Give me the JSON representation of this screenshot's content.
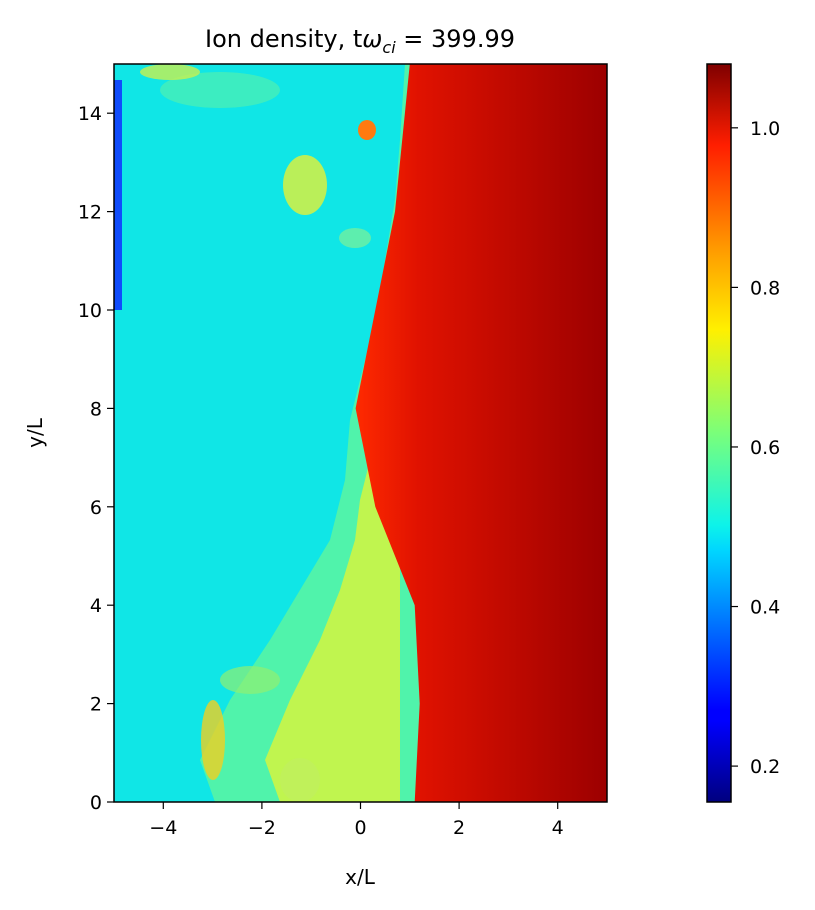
{
  "chart_data": {
    "type": "heatmap",
    "title_prefix": "Ion density, t",
    "title_symbol": "ω",
    "title_subscript": "ci",
    "title_suffix": " = 399.99",
    "xlabel": "x/L",
    "ylabel": "y/L",
    "xlim": [
      -5,
      5
    ],
    "ylim": [
      0,
      15
    ],
    "xticks": [
      -4,
      -2,
      0,
      2,
      4
    ],
    "xtick_labels": [
      "−4",
      "−2",
      "0",
      "2",
      "4"
    ],
    "yticks": [
      0,
      2,
      4,
      6,
      8,
      10,
      12,
      14
    ],
    "ytick_labels": [
      "0",
      "2",
      "4",
      "6",
      "8",
      "10",
      "12",
      "14"
    ],
    "colormap": "jet",
    "colorbar": {
      "min": 0.155,
      "max": 1.08,
      "ticks": [
        0.2,
        0.4,
        0.6,
        0.8,
        1.0
      ],
      "tick_labels": [
        "0.2",
        "0.4",
        "0.6",
        "0.8",
        "1.0"
      ]
    },
    "regions": {
      "background_value": 0.48,
      "dense_value": 1.05,
      "front_x_by_y": [
        {
          "y": 0,
          "x": 1.1
        },
        {
          "y": 2,
          "x": 1.2
        },
        {
          "y": 4,
          "x": 1.1
        },
        {
          "y": 6,
          "x": 0.3
        },
        {
          "y": 8,
          "x": -0.1
        },
        {
          "y": 10,
          "x": 0.3
        },
        {
          "y": 12,
          "x": 0.7
        },
        {
          "y": 14,
          "x": 0.9
        },
        {
          "y": 15,
          "x": 1.0
        }
      ]
    }
  }
}
